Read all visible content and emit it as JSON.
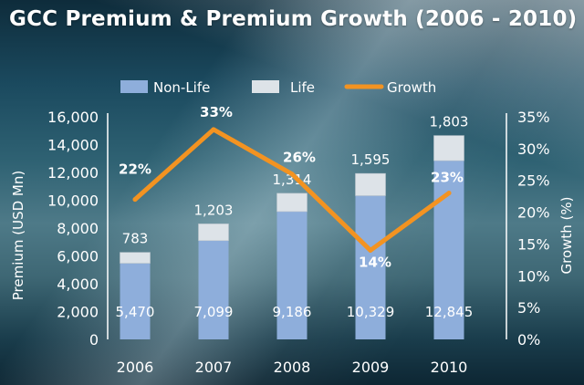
{
  "chart_data": {
    "type": "bar",
    "title": "GCC Premium & Premium Growth (2006 - 2010)",
    "categories": [
      "2006",
      "2007",
      "2008",
      "2009",
      "2010"
    ],
    "series": [
      {
        "name": "Non-Life",
        "kind": "stacked-bar",
        "color": "#8eaedb",
        "values": [
          5470,
          7099,
          9186,
          10329,
          12845
        ],
        "labels": [
          "5,470",
          "7,099",
          "9,186",
          "10,329",
          "12,845"
        ]
      },
      {
        "name": "Life",
        "kind": "stacked-bar",
        "color": "#dde3e8",
        "values": [
          783,
          1203,
          1314,
          1595,
          1803
        ],
        "labels": [
          "783",
          "1,203",
          "1,314",
          "1,595",
          "1,803"
        ]
      },
      {
        "name": "Growth",
        "kind": "line",
        "axis": "right",
        "color": "#f39321",
        "values": [
          22,
          33,
          26,
          14,
          23
        ],
        "labels": [
          "22%",
          "33%",
          "26%",
          "14%",
          "23%"
        ]
      }
    ],
    "ylabel": "Premium (USD Mn)",
    "y2label": "Growth (%)",
    "ylim": [
      0,
      16000
    ],
    "y2lim": [
      0,
      35
    ],
    "yticks": [
      "0",
      "2,000",
      "4,000",
      "6,000",
      "8,000",
      "10,000",
      "12,000",
      "14,000",
      "16,000"
    ],
    "y2ticks": [
      "0%",
      "5%",
      "10%",
      "15%",
      "20%",
      "25%",
      "30%",
      "35%"
    ],
    "legend_position": "top",
    "grid": false
  }
}
